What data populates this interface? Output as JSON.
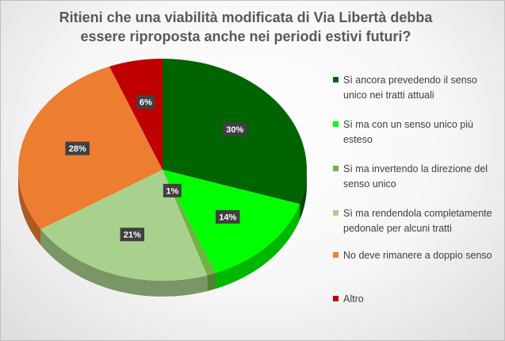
{
  "title_lines": [
    "Ritieni che una viabilità modificata di Via Libertà debba",
    "essere riproposta anche nei periodi estivi futuri?"
  ],
  "chart_data": {
    "type": "pie",
    "title": "Ritieni che una viabilità modificata di Via Libertà debba essere riproposta anche nei periodi estivi futuri?",
    "legend_position": "right",
    "series": [
      {
        "label": "Sì ancora prevedendo il senso unico nei tratti attuali",
        "value": 30,
        "display": "30%",
        "color": "#006400"
      },
      {
        "label": "Sì ma con un senso unico più esteso",
        "value": 14,
        "display": "14%",
        "color": "#00ff00"
      },
      {
        "label": "Sì ma invertendo la direzione del senso unico",
        "value": 1,
        "display": "1%",
        "color": "#6fb342"
      },
      {
        "label": "Sì ma rendendola completamente pedonale per alcuni tratti",
        "value": 21,
        "display": "21%",
        "color": "#a9d18e"
      },
      {
        "label": "No deve rimanere a doppio senso",
        "value": 28,
        "display": "28%",
        "color": "#ed7d31"
      },
      {
        "label": "Altro",
        "value": 6,
        "display": "6%",
        "color": "#c00000"
      }
    ]
  }
}
